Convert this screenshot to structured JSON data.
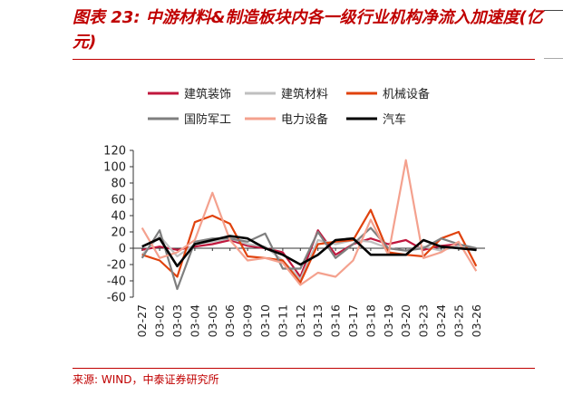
{
  "title": "图表 23:  中游材料&制造板块内各一级行业机构净流入加速度(亿元)",
  "source": "来源: WIND，中泰证券研究所",
  "chart_data": {
    "type": "line",
    "title": "图表 23:  中游材料&制造板块内各一级行业机构净流入加速度(亿元)",
    "xlabel": "",
    "ylabel": "",
    "ylim": [
      -60,
      120
    ],
    "yticks": [
      "120",
      "100",
      "80",
      "60",
      "40",
      "20",
      "0",
      "-20",
      "-40",
      "-60"
    ],
    "grid": false,
    "legend_position": "top",
    "categories": [
      "02-27",
      "03-02",
      "03-03",
      "03-04",
      "03-05",
      "03-06",
      "03-09",
      "03-10",
      "03-11",
      "03-12",
      "03-13",
      "03-16",
      "03-17",
      "03-18",
      "03-19",
      "03-20",
      "03-23",
      "03-24",
      "03-25",
      "03-26"
    ],
    "series": [
      {
        "name": "建筑装饰",
        "color": "#c0173d",
        "values": [
          -2,
          2,
          -2,
          2,
          5,
          10,
          3,
          0,
          -5,
          -35,
          22,
          -8,
          5,
          12,
          5,
          10,
          -2,
          3,
          5,
          -2
        ]
      },
      {
        "name": "建筑材料",
        "color": "#bfbfbf",
        "values": [
          -8,
          15,
          -10,
          5,
          8,
          12,
          5,
          2,
          -15,
          -38,
          10,
          5,
          10,
          8,
          0,
          -3,
          2,
          -3,
          3,
          -3
        ]
      },
      {
        "name": "机械设备",
        "color": "#e0420d",
        "values": [
          -8,
          -15,
          -35,
          32,
          40,
          30,
          -10,
          -12,
          -15,
          -42,
          5,
          8,
          10,
          47,
          -5,
          -8,
          -10,
          12,
          20,
          -22
        ]
      },
      {
        "name": "国防军工",
        "color": "#7f7f7f",
        "values": [
          -12,
          22,
          -50,
          8,
          12,
          12,
          8,
          18,
          -25,
          -25,
          20,
          -12,
          5,
          25,
          0,
          -3,
          0,
          12,
          5,
          0
        ]
      },
      {
        "name": "电力设备",
        "color": "#f4a18e",
        "values": [
          25,
          -12,
          -5,
          10,
          68,
          10,
          -15,
          -12,
          -18,
          -45,
          -30,
          -35,
          -15,
          35,
          -8,
          108,
          -12,
          -5,
          8,
          -28
        ]
      },
      {
        "name": "汽车",
        "color": "#000000",
        "values": [
          2,
          12,
          -22,
          5,
          10,
          15,
          12,
          0,
          -8,
          -20,
          -8,
          10,
          12,
          -8,
          -8,
          -8,
          10,
          2,
          0,
          -2
        ]
      }
    ]
  }
}
